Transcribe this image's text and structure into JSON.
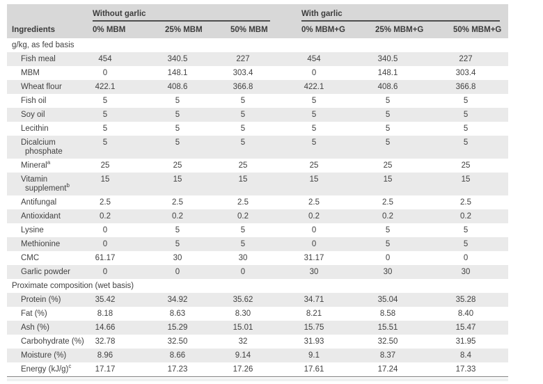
{
  "table": {
    "ingredients_header": "Ingredients",
    "col_groups": [
      {
        "label": "Without garlic",
        "cols": [
          "0% MBM",
          "25% MBM",
          "50% MBM"
        ]
      },
      {
        "label": "With garlic",
        "cols": [
          "0% MBM+G",
          "25% MBM+G",
          "50% MBM+G"
        ]
      }
    ],
    "sections": [
      {
        "label": "g/kg, as fed basis",
        "rows": [
          {
            "name": "Fish meal",
            "values": [
              "454",
              "340.5",
              "227",
              "454",
              "340.5",
              "227"
            ]
          },
          {
            "name": "MBM",
            "values": [
              "0",
              "148.1",
              "303.4",
              "0",
              "148.1",
              "303.4"
            ]
          },
          {
            "name": "Wheat flour",
            "values": [
              "422.1",
              "408.6",
              "366.8",
              "422.1",
              "408.6",
              "366.8"
            ]
          },
          {
            "name": "Fish oil",
            "values": [
              "5",
              "5",
              "5",
              "5",
              "5",
              "5"
            ]
          },
          {
            "name": "Soy oil",
            "values": [
              "5",
              "5",
              "5",
              "5",
              "5",
              "5"
            ]
          },
          {
            "name": "Lecithin",
            "values": [
              "5",
              "5",
              "5",
              "5",
              "5",
              "5"
            ]
          },
          {
            "name": "Dicalcium phosphate",
            "values": [
              "5",
              "5",
              "5",
              "5",
              "5",
              "5"
            ]
          },
          {
            "name": "Mineral",
            "sup": "a",
            "values": [
              "25",
              "25",
              "25",
              "25",
              "25",
              "25"
            ]
          },
          {
            "name": "Vitamin supplement",
            "sup": "b",
            "values": [
              "15",
              "15",
              "15",
              "15",
              "15",
              "15"
            ]
          },
          {
            "name": "Antifungal",
            "values": [
              "2.5",
              "2.5",
              "2.5",
              "2.5",
              "2.5",
              "2.5"
            ]
          },
          {
            "name": "Antioxidant",
            "values": [
              "0.2",
              "0.2",
              "0.2",
              "0.2",
              "0.2",
              "0.2"
            ]
          },
          {
            "name": "Lysine",
            "values": [
              "0",
              "5",
              "5",
              "0",
              "5",
              "5"
            ]
          },
          {
            "name": "Methionine",
            "values": [
              "0",
              "5",
              "5",
              "0",
              "5",
              "5"
            ]
          },
          {
            "name": "CMC",
            "values": [
              "61.17",
              "30",
              "30",
              "31.17",
              "0",
              "0"
            ]
          },
          {
            "name": "Garlic powder",
            "values": [
              "0",
              "0",
              "0",
              "30",
              "30",
              "30"
            ]
          }
        ]
      },
      {
        "label": "Proximate composition (wet basis)",
        "rows": [
          {
            "name": "Protein (%)",
            "values": [
              "35.42",
              "34.92",
              "35.62",
              "34.71",
              "35.04",
              "35.28"
            ]
          },
          {
            "name": "Fat (%)",
            "values": [
              "8.18",
              "8.63",
              "8.30",
              "8.21",
              "8.58",
              "8.40"
            ]
          },
          {
            "name": "Ash (%)",
            "values": [
              "14.66",
              "15.29",
              "15.01",
              "15.75",
              "15.51",
              "15.47"
            ]
          },
          {
            "name": "Carbohydrate (%)",
            "values": [
              "32.78",
              "32.50",
              "32",
              "31.93",
              "32.50",
              "31.95"
            ]
          },
          {
            "name": "Moisture (%)",
            "values": [
              "8.96",
              "8.66",
              "9.14",
              "9.1",
              "8.37",
              "8.4"
            ]
          },
          {
            "name": "Energy (kJ/g)",
            "sup": "c",
            "values": [
              "17.17",
              "17.23",
              "17.26",
              "17.61",
              "17.24",
              "17.33"
            ]
          }
        ]
      }
    ],
    "colors": {
      "header_bg": "#d8d8d8",
      "stripe_bg": "#eaeaea",
      "text": "#404040",
      "group_underline": "#4e4e4e",
      "table_bottom_border": "#7e7e7e"
    }
  }
}
